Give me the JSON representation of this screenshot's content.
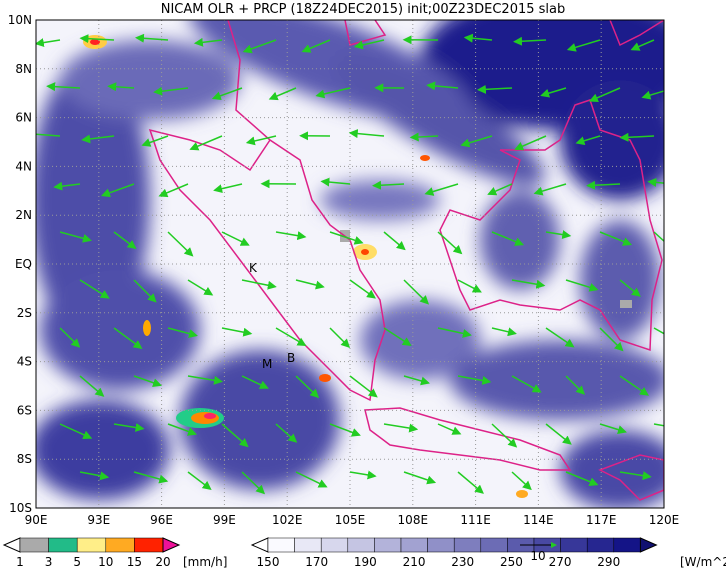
{
  "title": "NICAM OLR + PRCP (18Z24DEC2015) init;00Z23DEC2015 slab",
  "lat_labels": [
    "10N",
    "8N",
    "6N",
    "4N",
    "2N",
    "EQ",
    "2S",
    "4S",
    "6S",
    "8S",
    "10S"
  ],
  "lon_labels": [
    "90E",
    "93E",
    "96E",
    "99E",
    "102E",
    "105E",
    "108E",
    "111E",
    "114E",
    "117E",
    "120E"
  ],
  "map_labels": [
    "K",
    "M",
    "B"
  ],
  "precip_legend": {
    "labels": [
      1,
      3,
      5,
      10,
      15,
      20
    ],
    "unit": "[mm/h]"
  },
  "olr_legend": {
    "labels": [
      150,
      170,
      190,
      210,
      230,
      250,
      270,
      290
    ],
    "unit": "[W/m^2]"
  },
  "vector_reference": "10"
}
